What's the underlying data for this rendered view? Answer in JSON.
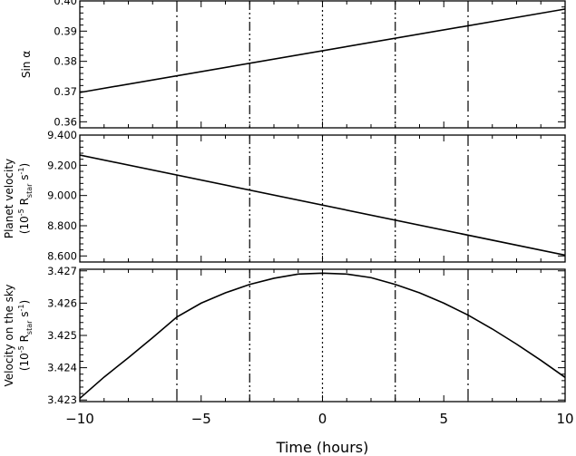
{
  "chart_data": [
    {
      "type": "line",
      "panel": "top",
      "ylabel": "Sin α",
      "ylim": [
        0.358,
        0.4
      ],
      "yticks": [
        0.36,
        0.37,
        0.38,
        0.39,
        0.4
      ],
      "ytick_labels": [
        "0.36",
        "0.37",
        "0.38",
        "0.39",
        "0.40"
      ],
      "x": [
        -10,
        10
      ],
      "y": [
        0.3697,
        0.3973
      ]
    },
    {
      "type": "line",
      "panel": "middle",
      "ylabel_line1": "Planet velocity",
      "ylabel_line2_parts": [
        "(10",
        "-5",
        " R",
        "star",
        " s",
        "-1",
        ")"
      ],
      "ylim": [
        8.56,
        9.4
      ],
      "yticks": [
        8.6,
        8.8,
        9.0,
        9.2,
        9.4
      ],
      "ytick_labels": [
        "8.600",
        "8.800",
        "9.000",
        "9.200",
        "9.400"
      ],
      "x": [
        -10,
        10
      ],
      "y": [
        9.268,
        8.605
      ]
    },
    {
      "type": "line",
      "panel": "bottom",
      "ylabel_line1": "Velocity on the sky",
      "ylabel_line2_parts": [
        "(10",
        "-5",
        " R",
        "star",
        " s",
        "-1",
        ")"
      ],
      "ylim": [
        3.42295,
        3.42705
      ],
      "yticks": [
        3.423,
        3.424,
        3.425,
        3.426,
        3.427
      ],
      "ytick_labels": [
        "3.423",
        "3.424",
        "3.425",
        "3.426",
        "3.427"
      ],
      "x": [
        -10,
        -9,
        -8,
        -7,
        -6,
        -5,
        -4,
        -3,
        -2,
        -1,
        0,
        1,
        2,
        3,
        4,
        5,
        6,
        7,
        8,
        9,
        10
      ],
      "y": [
        3.42305,
        3.42371,
        3.42431,
        3.42493,
        3.42557,
        3.426,
        3.42632,
        3.42658,
        3.42677,
        3.4269,
        3.42693,
        3.4269,
        3.42679,
        3.42658,
        3.42632,
        3.426,
        3.42563,
        3.4252,
        3.42473,
        3.42423,
        3.4237
      ]
    }
  ],
  "shared_x": {
    "xlabel": "Time (hours)",
    "xlim": [
      -10,
      10
    ],
    "xticks": [
      -10,
      -5,
      0,
      5,
      10
    ],
    "xtick_labels": [
      "−10",
      "−5",
      "0",
      "5",
      "10"
    ]
  },
  "vertical_lines": [
    {
      "x": -6,
      "style": "dash-dot"
    },
    {
      "x": -3,
      "style": "dash-dot-dot"
    },
    {
      "x": 0,
      "style": "dotted"
    },
    {
      "x": 3,
      "style": "dash-dot-dot"
    },
    {
      "x": 6,
      "style": "dash-dot"
    }
  ]
}
